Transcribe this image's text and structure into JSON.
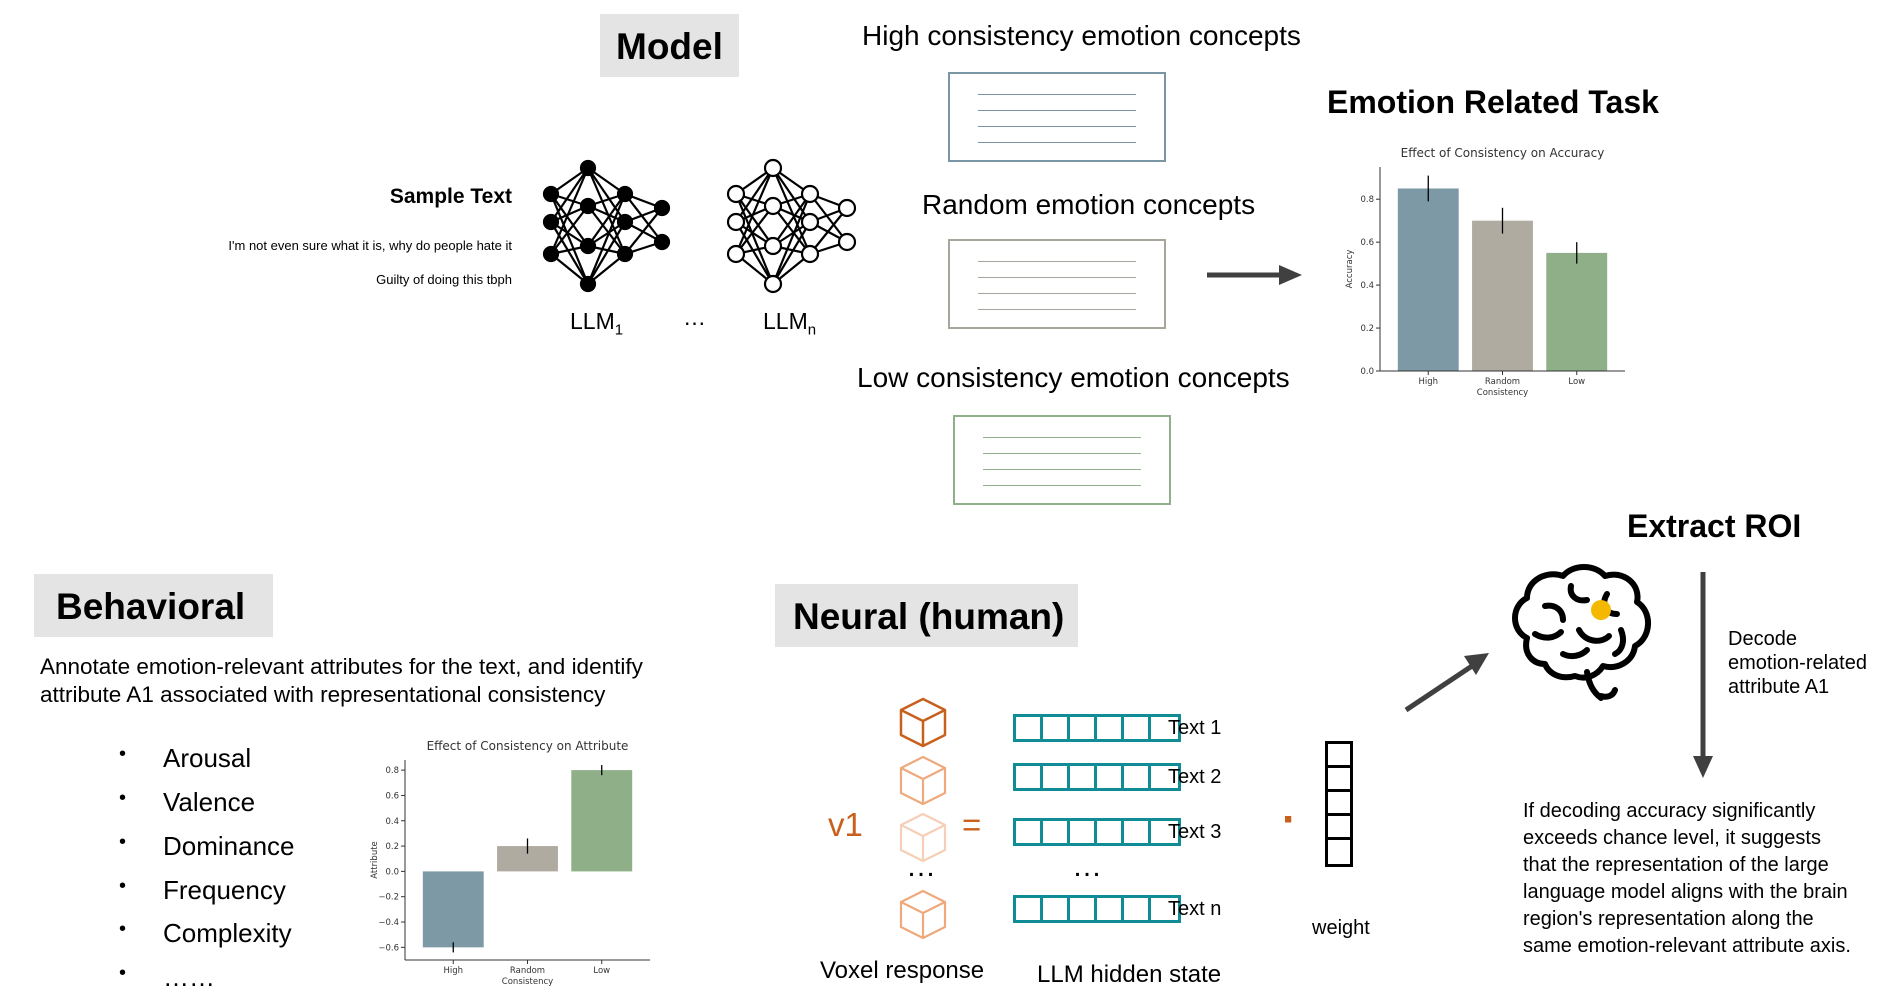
{
  "model": {
    "title": "Model",
    "sample_title": "Sample Text",
    "sample_lines": [
      "I'm not even sure what it is, why do people hate it",
      "Guilty of doing this tbph"
    ],
    "llm_first": "LLM",
    "llm_first_sub": "1",
    "llm_ellipsis": "…",
    "llm_last": "LLM",
    "llm_last_sub": "n",
    "concepts": [
      {
        "label": "High consistency emotion concepts",
        "color": "#7a96a4"
      },
      {
        "label": "Random emotion concepts",
        "color": "#a8a69c"
      },
      {
        "label": "Low consistency emotion concepts",
        "color": "#8fb08a"
      }
    ]
  },
  "task": {
    "title": "Emotion Related Task"
  },
  "behavioral": {
    "title": "Behavioral",
    "description": [
      "Annotate emotion-relevant attributes for the text, and identify",
      "attribute A1 associated with representational consistency"
    ],
    "attributes": [
      "Arousal",
      "Valence",
      "Dominance",
      "Frequency",
      "Complexity",
      "……"
    ],
    "bullet": "•"
  },
  "neural": {
    "title": "Neural (human)",
    "v1_label": "v1",
    "equals": "=",
    "dot": "·",
    "ellipsis": "…",
    "texts": [
      "Text 1",
      "Text 2",
      "Text 3",
      "Text n"
    ],
    "voxel_label": "Voxel response",
    "hidden_label": "LLM hidden state",
    "weight_label": "weight"
  },
  "roi": {
    "title": "Extract ROI",
    "decode_lines": [
      "Decode",
      "emotion-related",
      "attribute A1"
    ],
    "conclusion_lines": [
      "If decoding accuracy significantly",
      "exceeds chance level, it suggests",
      "that the representation of the large",
      "language model aligns with the brain",
      "region's representation along the",
      "same emotion-relevant attribute axis."
    ]
  },
  "colors": {
    "high": "#7d99a6",
    "random": "#b0aba1",
    "low": "#8eaf88",
    "teal": "#0f8c95",
    "orange": "#c8601c",
    "roi_dot": "#f5b800"
  },
  "chart_data": [
    {
      "type": "bar",
      "title": "Effect of Consistency on Accuracy",
      "categories": [
        "High",
        "Random",
        "Low"
      ],
      "values": [
        0.85,
        0.7,
        0.55
      ],
      "errors": [
        0.06,
        0.06,
        0.05
      ],
      "xlabel": "Consistency",
      "ylabel": "Accuracy",
      "ylim": [
        0,
        0.95
      ],
      "yticks": [
        0.0,
        0.2,
        0.4,
        0.6,
        0.8
      ],
      "ytick_labels": [
        "0.0",
        "0.2",
        "0.4",
        "0.6",
        "0.8"
      ],
      "grid": false
    },
    {
      "type": "bar",
      "title": "Effect of Consistency on Attribute",
      "categories": [
        "High",
        "Random",
        "Low"
      ],
      "values": [
        -0.6,
        0.2,
        0.8
      ],
      "errors": [
        0.04,
        0.06,
        0.04
      ],
      "xlabel": "Consistency",
      "ylabel": "Attribute",
      "ylim": [
        -0.7,
        0.88
      ],
      "yticks": [
        -0.6,
        -0.4,
        -0.2,
        0.0,
        0.2,
        0.4,
        0.6,
        0.8
      ],
      "ytick_labels": [
        "−0.6",
        "−0.4",
        "−0.2",
        "0.0",
        "0.2",
        "0.4",
        "0.6",
        "0.8"
      ],
      "grid": false
    }
  ]
}
